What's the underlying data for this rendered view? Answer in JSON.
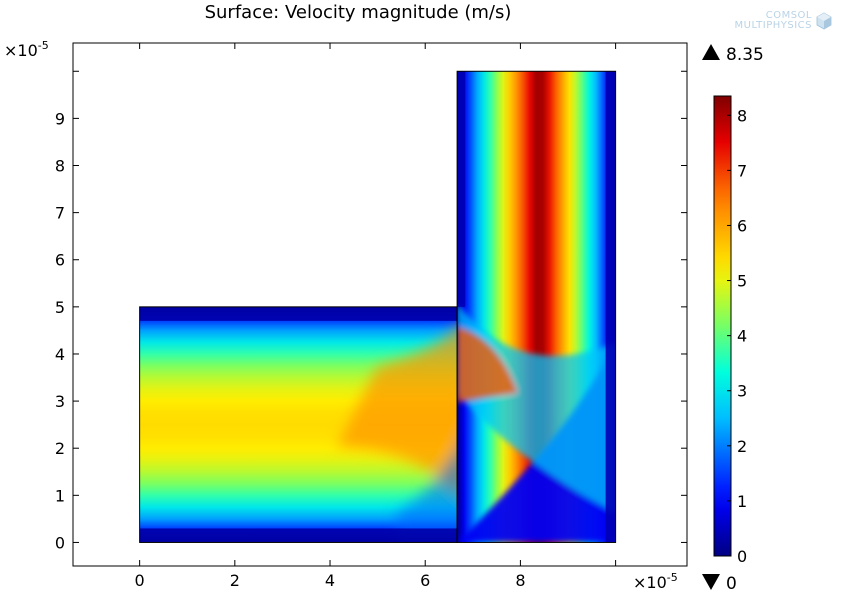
{
  "title": "Surface: Velocity magnitude (m/s)",
  "logo": {
    "line1": "COMSOL",
    "line2": "MULTIPHYSICS",
    "icon": "comsol-cube-icon"
  },
  "chart_data": {
    "type": "heatmap",
    "title": "Surface: Velocity magnitude (m/s)",
    "quantity": "Velocity magnitude",
    "unit": "m/s",
    "x_scale_label": "×10",
    "x_scale_exponent": "-5",
    "y_scale_label": "×10",
    "y_scale_exponent": "-5",
    "xlim": [
      -1.4,
      11.5
    ],
    "ylim": [
      -0.5,
      10.6
    ],
    "x_ticks": [
      0,
      2,
      4,
      6,
      8
    ],
    "x_tick_labels": [
      "0",
      "2",
      "4",
      "6",
      "8"
    ],
    "y_ticks": [
      0,
      1,
      2,
      3,
      4,
      5,
      6,
      7,
      8,
      9
    ],
    "y_tick_labels": [
      "0",
      "1",
      "2",
      "3",
      "4",
      "5",
      "6",
      "7",
      "8",
      "9"
    ],
    "domain": {
      "horizontal_channel": {
        "x": [
          0,
          6.67
        ],
        "y": [
          0,
          5
        ]
      },
      "vertical_channel": {
        "x": [
          6.67,
          10
        ],
        "y": [
          0,
          10
        ]
      }
    },
    "colorbar": {
      "colormap": "rainbow",
      "min": 0,
      "max": 8.35,
      "ticks": [
        0,
        1,
        2,
        3,
        4,
        5,
        6,
        7,
        8
      ],
      "tick_labels": [
        "0",
        "1",
        "2",
        "3",
        "4",
        "5",
        "6",
        "7",
        "8"
      ],
      "max_label": "8.35",
      "min_label": "0"
    },
    "field_summary": {
      "horizontal_inlet_peak": 5.4,
      "vertical_outlet_peak": 8.35,
      "wall_value": 0
    }
  }
}
